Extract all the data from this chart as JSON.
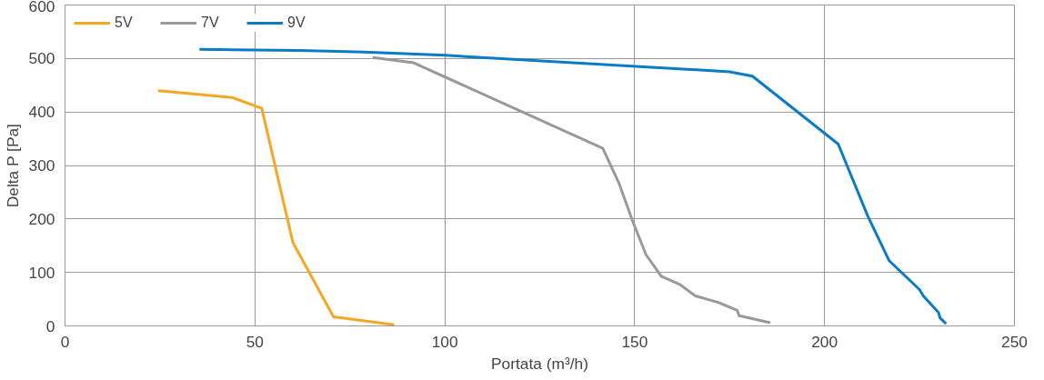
{
  "chart_data": {
    "type": "line",
    "xlabel": "Portata (m³/h)",
    "ylabel": "Delta P [Pa]",
    "xlim": [
      0,
      250
    ],
    "ylim": [
      0,
      600
    ],
    "xticks": [
      0,
      50,
      100,
      150,
      200,
      250
    ],
    "yticks": [
      0,
      100,
      200,
      300,
      400,
      500,
      600
    ],
    "grid": true,
    "legend": "top left",
    "marker": "none",
    "line_style": "solid",
    "series": [
      {
        "name": "5V",
        "color": "#f5a623",
        "x": [
          24.5,
          44,
          51.8,
          60,
          70.7,
          86.7
        ],
        "values": [
          440,
          427,
          407,
          156,
          17,
          2
        ]
      },
      {
        "name": "7V",
        "color": "#999999",
        "x": [
          81,
          91.8,
          141.6,
          145.8,
          149.4,
          153,
          157,
          162,
          166,
          172,
          177,
          177.5,
          185.7
        ],
        "values": [
          502,
          492,
          332,
          268,
          197,
          133,
          93,
          77,
          56,
          44,
          29,
          19,
          6
        ]
      },
      {
        "name": "9V",
        "color": "#0a7bc4",
        "x": [
          35.4,
          61.7,
          78.7,
          100,
          168.3,
          175,
          181,
          203.6,
          211.4,
          217,
          225,
          226,
          230,
          230.4,
          232
        ],
        "values": [
          517,
          515,
          512,
          506,
          478,
          475,
          467,
          340,
          205,
          122,
          68,
          56,
          25,
          15,
          4
        ]
      }
    ]
  }
}
